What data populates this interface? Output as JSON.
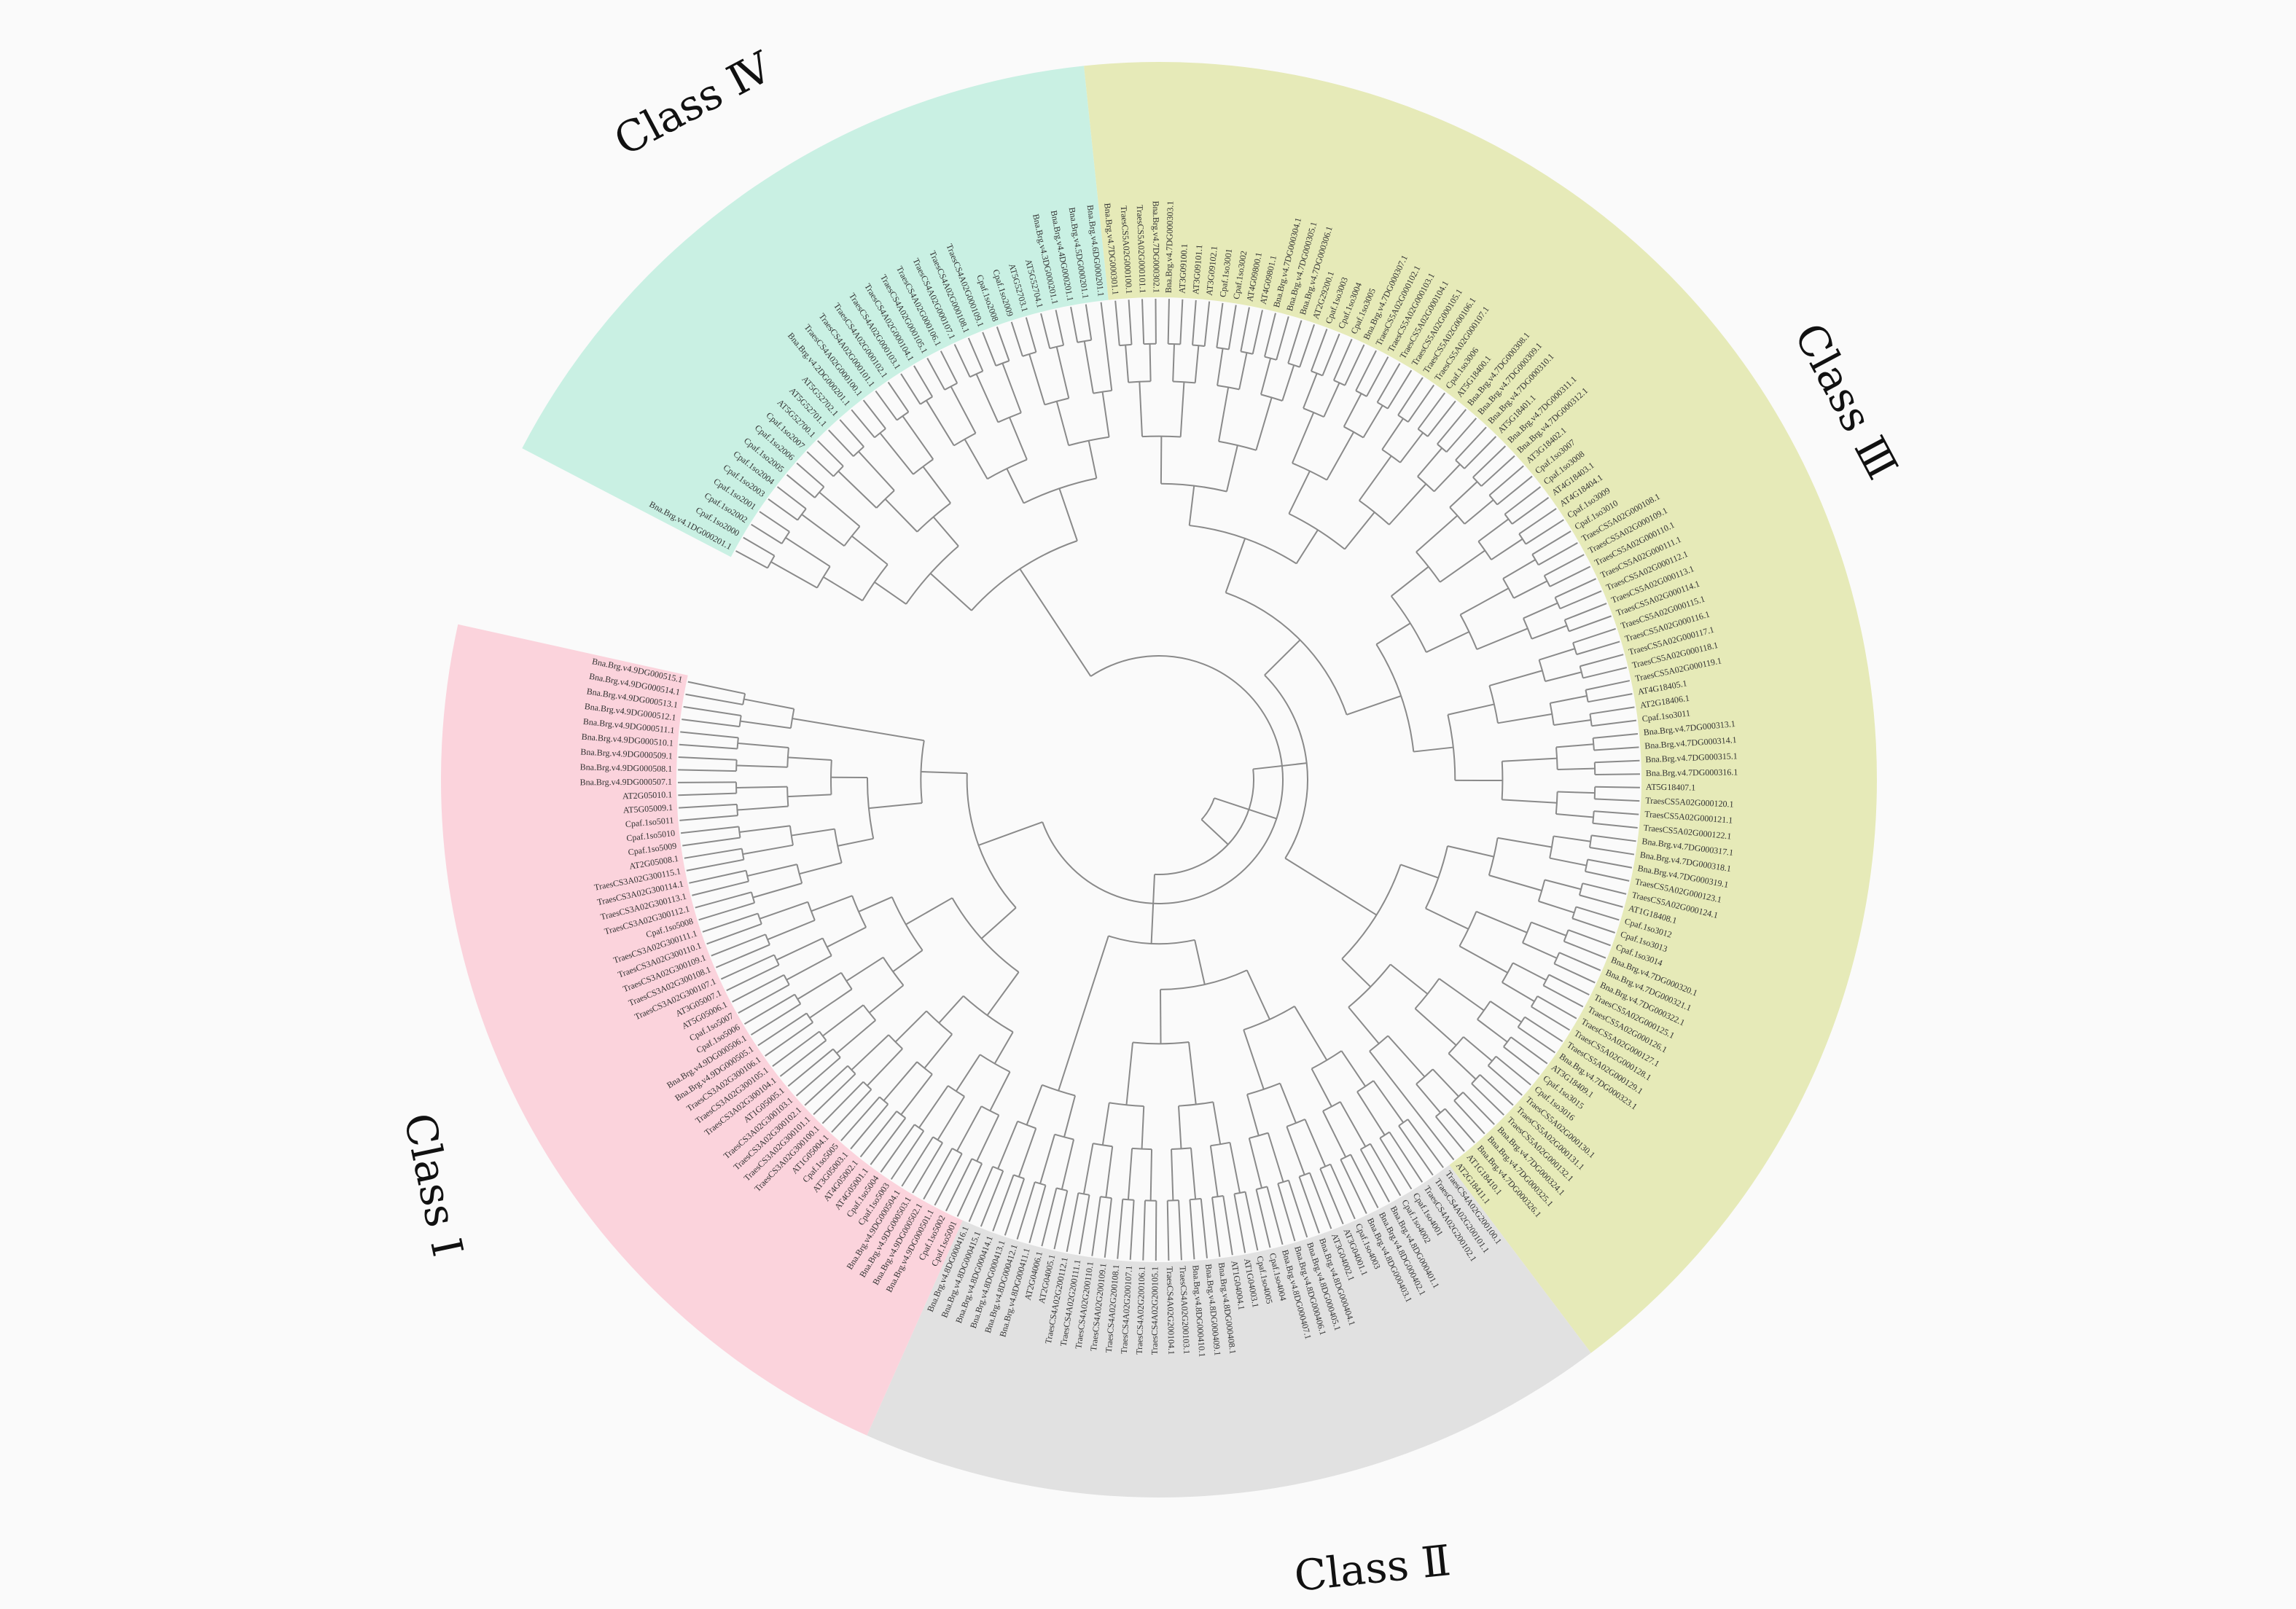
{
  "classes": [
    {
      "id": "class-4",
      "label": "Class Ⅳ",
      "color": "#c9f0e3"
    },
    {
      "id": "class-3",
      "label": "Class Ⅲ",
      "color": "#e6eab8"
    },
    {
      "id": "class-2",
      "label": "Class Ⅱ",
      "color": "#e1e1e1"
    },
    {
      "id": "class-1",
      "label": "Class Ⅰ",
      "color": "#fbd3dc"
    }
  ],
  "leaves": {
    "class-4": [
      "Bna.Brg.v4.1DG000201.1",
      "Cpaf.1so2000",
      "Cpaf.1so2002",
      "Cpaf.1so2001",
      "Cpaf.1so2003",
      "Cpaf.1so2004",
      "Cpaf.1so2005",
      "Cpaf.1so2006",
      "Cpaf.1so2007",
      "AT5G52700.1",
      "AT5G52701.1",
      "AT5G52702.1",
      "Bna.Brg.v4.2DG000201.1",
      "TraesCS4A02G000100.1",
      "TraesCS4A02G000101.1",
      "TraesCS4A02G000102.1",
      "TraesCS4A02G000103.1",
      "TraesCS4A02G000104.1",
      "TraesCS4A02G000105.1",
      "TraesCS4A02G000106.1",
      "TraesCS4A02G000107.1",
      "TraesCS4A02G000108.1",
      "TraesCS4A02G000109.1",
      "Cpaf.1so2008",
      "Cpaf.1so2009",
      "AT5G52703.1",
      "AT5G52704.1",
      "Bna.Brg.v4.3DG000201.1",
      "Bna.Brg.v4.4DG000201.1",
      "Bna.Brg.v4.5DG000201.1",
      "Bna.Brg.v4.6DG000201.1"
    ],
    "class-3": [
      "Bna.Brg.v4.7DG000301.1",
      "TraesCS5A02G000100.1",
      "TraesCS5A02G000101.1",
      "Bna.Brg.v4.7DG000302.1",
      "Bna.Brg.v4.7DG000303.1",
      "AT3G09100.1",
      "AT3G09101.1",
      "AT3G09102.1",
      "Cpaf.1so3001",
      "Cpaf.1so3002",
      "AT4G09800.1",
      "AT4G09801.1",
      "Bna.Brg.v4.7DG000304.1",
      "Bna.Brg.v4.7DG000305.1",
      "Bna.Brg.v4.7DG000306.1",
      "AT2G29200.1",
      "Cpaf.1so3003",
      "Cpaf.1so3004",
      "Cpaf.1so3005",
      "Bna.Brg.v4.7DG000307.1",
      "TraesCS5A02G000102.1",
      "TraesCS5A02G000103.1",
      "TraesCS5A02G000104.1",
      "TraesCS5A02G000105.1",
      "TraesCS5A02G000106.1",
      "TraesCS5A02G000107.1",
      "Cpaf.1so3006",
      "AT5G18400.1",
      "Bna.Brg.v4.7DG000308.1",
      "Bna.Brg.v4.7DG000309.1",
      "Bna.Brg.v4.7DG000310.1",
      "AT5G18401.1",
      "Bna.Brg.v4.7DG000311.1",
      "Bna.Brg.v4.7DG000312.1",
      "AT3G18402.1",
      "Cpaf.1so3007",
      "Cpaf.1so3008",
      "AT4G18403.1",
      "AT4G18404.1",
      "Cpaf.1so3009",
      "Cpaf.1so3010",
      "TraesCS5A02G000108.1",
      "TraesCS5A02G000109.1",
      "TraesCS5A02G000110.1",
      "TraesCS5A02G000111.1",
      "TraesCS5A02G000112.1",
      "TraesCS5A02G000113.1",
      "TraesCS5A02G000114.1",
      "TraesCS5A02G000115.1",
      "TraesCS5A02G000116.1",
      "TraesCS5A02G000117.1",
      "TraesCS5A02G000118.1",
      "TraesCS5A02G000119.1",
      "AT4G18405.1",
      "AT2G18406.1",
      "Cpaf.1so3011",
      "Bna.Brg.v4.7DG000313.1",
      "Bna.Brg.v4.7DG000314.1",
      "Bna.Brg.v4.7DG000315.1",
      "Bna.Brg.v4.7DG000316.1",
      "AT5G18407.1",
      "TraesCS5A02G000120.1",
      "TraesCS5A02G000121.1",
      "TraesCS5A02G000122.1",
      "Bna.Brg.v4.7DG000317.1",
      "Bna.Brg.v4.7DG000318.1",
      "Bna.Brg.v4.7DG000319.1",
      "TraesCS5A02G000123.1",
      "TraesCS5A02G000124.1",
      "AT1G18408.1",
      "Cpaf.1so3012",
      "Cpaf.1so3013",
      "Cpaf.1so3014",
      "Bna.Brg.v4.7DG000320.1",
      "Bna.Brg.v4.7DG000321.1",
      "Bna.Brg.v4.7DG000322.1",
      "TraesCS5A02G000125.1",
      "TraesCS5A02G000126.1",
      "TraesCS5A02G000127.1",
      "TraesCS5A02G000128.1",
      "TraesCS5A02G000129.1",
      "Bna.Brg.v4.7DG000323.1",
      "AT3G18409.1",
      "Cpaf.1so3015",
      "Cpaf.1so3016",
      "TraesCS5A02G000130.1",
      "TraesCS5A02G000131.1",
      "TraesCS5A02G000132.1",
      "Bna.Brg.v4.7DG000324.1",
      "Bna.Brg.v4.7DG000325.1",
      "Bna.Brg.v4.7DG000326.1",
      "AT1G18410.1",
      "AT2G18411.1"
    ],
    "class-2": [
      "TraesCS4A02G200100.1",
      "TraesCS4A02G200101.1",
      "TraesCS4A02G200102.1",
      "Cpaf.1so4001",
      "Cpaf.1so4002",
      "Bna.Brg.v4.8DG000401.1",
      "Bna.Brg.v4.8DG000402.1",
      "Bna.Brg.v4.8DG000403.1",
      "Cpaf.1so4003",
      "AT3G04001.1",
      "AT3G04002.1",
      "Bna.Brg.v4.8DG000404.1",
      "Bna.Brg.v4.8DG000405.1",
      "Bna.Brg.v4.8DG000406.1",
      "Bna.Brg.v4.8DG000407.1",
      "Cpaf.1so4004",
      "Cpaf.1so4005",
      "AT1G04003.1",
      "AT1G04004.1",
      "Bna.Brg.v4.8DG000408.1",
      "Bna.Brg.v4.8DG000409.1",
      "Bna.Brg.v4.8DG000410.1",
      "TraesCS4A02G200103.1",
      "TraesCS4A02G200104.1",
      "TraesCS4A02G200105.1",
      "TraesCS4A02G200106.1",
      "TraesCS4A02G200107.1",
      "TraesCS4A02G200108.1",
      "TraesCS4A02G200109.1",
      "TraesCS4A02G200110.1",
      "TraesCS4A02G200111.1",
      "TraesCS4A02G200112.1",
      "AT2G04005.1",
      "AT2G04006.1",
      "Bna.Brg.v4.8DG000411.1",
      "Bna.Brg.v4.8DG000412.1",
      "Bna.Brg.v4.8DG000413.1",
      "Bna.Brg.v4.8DG000414.1",
      "Bna.Brg.v4.8DG000415.1",
      "Bna.Brg.v4.8DG000416.1"
    ],
    "class-1": [
      "Cpaf.1so5001",
      "Cpaf.1so5002",
      "Bna.Brg.v4.9DG000501.1",
      "Bna.Brg.v4.9DG000502.1",
      "Bna.Brg.v4.9DG000503.1",
      "Bna.Brg.v4.9DG000504.1",
      "Cpaf.1so5003",
      "Cpaf.1so5004",
      "AT4G05001.1",
      "AT4G05002.1",
      "AT3G05003.1",
      "Cpaf.1so5005",
      "AT1G05004.1",
      "TraesCS3A02G300100.1",
      "TraesCS3A02G300101.1",
      "TraesCS3A02G300102.1",
      "TraesCS3A02G300103.1",
      "AT1G05005.1",
      "TraesCS3A02G300104.1",
      "TraesCS3A02G300105.1",
      "TraesCS3A02G300106.1",
      "Bna.Brg.v4.9DG000505.1",
      "Bna.Brg.v4.9DG000506.1",
      "Cpaf.1so5006",
      "Cpaf.1so5007",
      "AT5G05006.1",
      "AT3G05007.1",
      "TraesCS3A02G300107.1",
      "TraesCS3A02G300108.1",
      "TraesCS3A02G300109.1",
      "TraesCS3A02G300110.1",
      "TraesCS3A02G300111.1",
      "Cpaf.1so5008",
      "TraesCS3A02G300112.1",
      "TraesCS3A02G300113.1",
      "TraesCS3A02G300114.1",
      "TraesCS3A02G300115.1",
      "AT2G05008.1",
      "Cpaf.1so5009",
      "Cpaf.1so5010",
      "Cpaf.1so5011",
      "AT5G05009.1",
      "AT2G05010.1",
      "Bna.Brg.v4.9DG000507.1",
      "Bna.Brg.v4.9DG000508.1",
      "Bna.Brg.v4.9DG000509.1",
      "Bna.Brg.v4.9DG000510.1",
      "Bna.Brg.v4.9DG000511.1",
      "Bna.Brg.v4.9DG000512.1",
      "Bna.Brg.v4.9DG000513.1",
      "Bna.Brg.v4.9DG000514.1",
      "Bna.Brg.v4.9DG000515.1"
    ]
  }
}
